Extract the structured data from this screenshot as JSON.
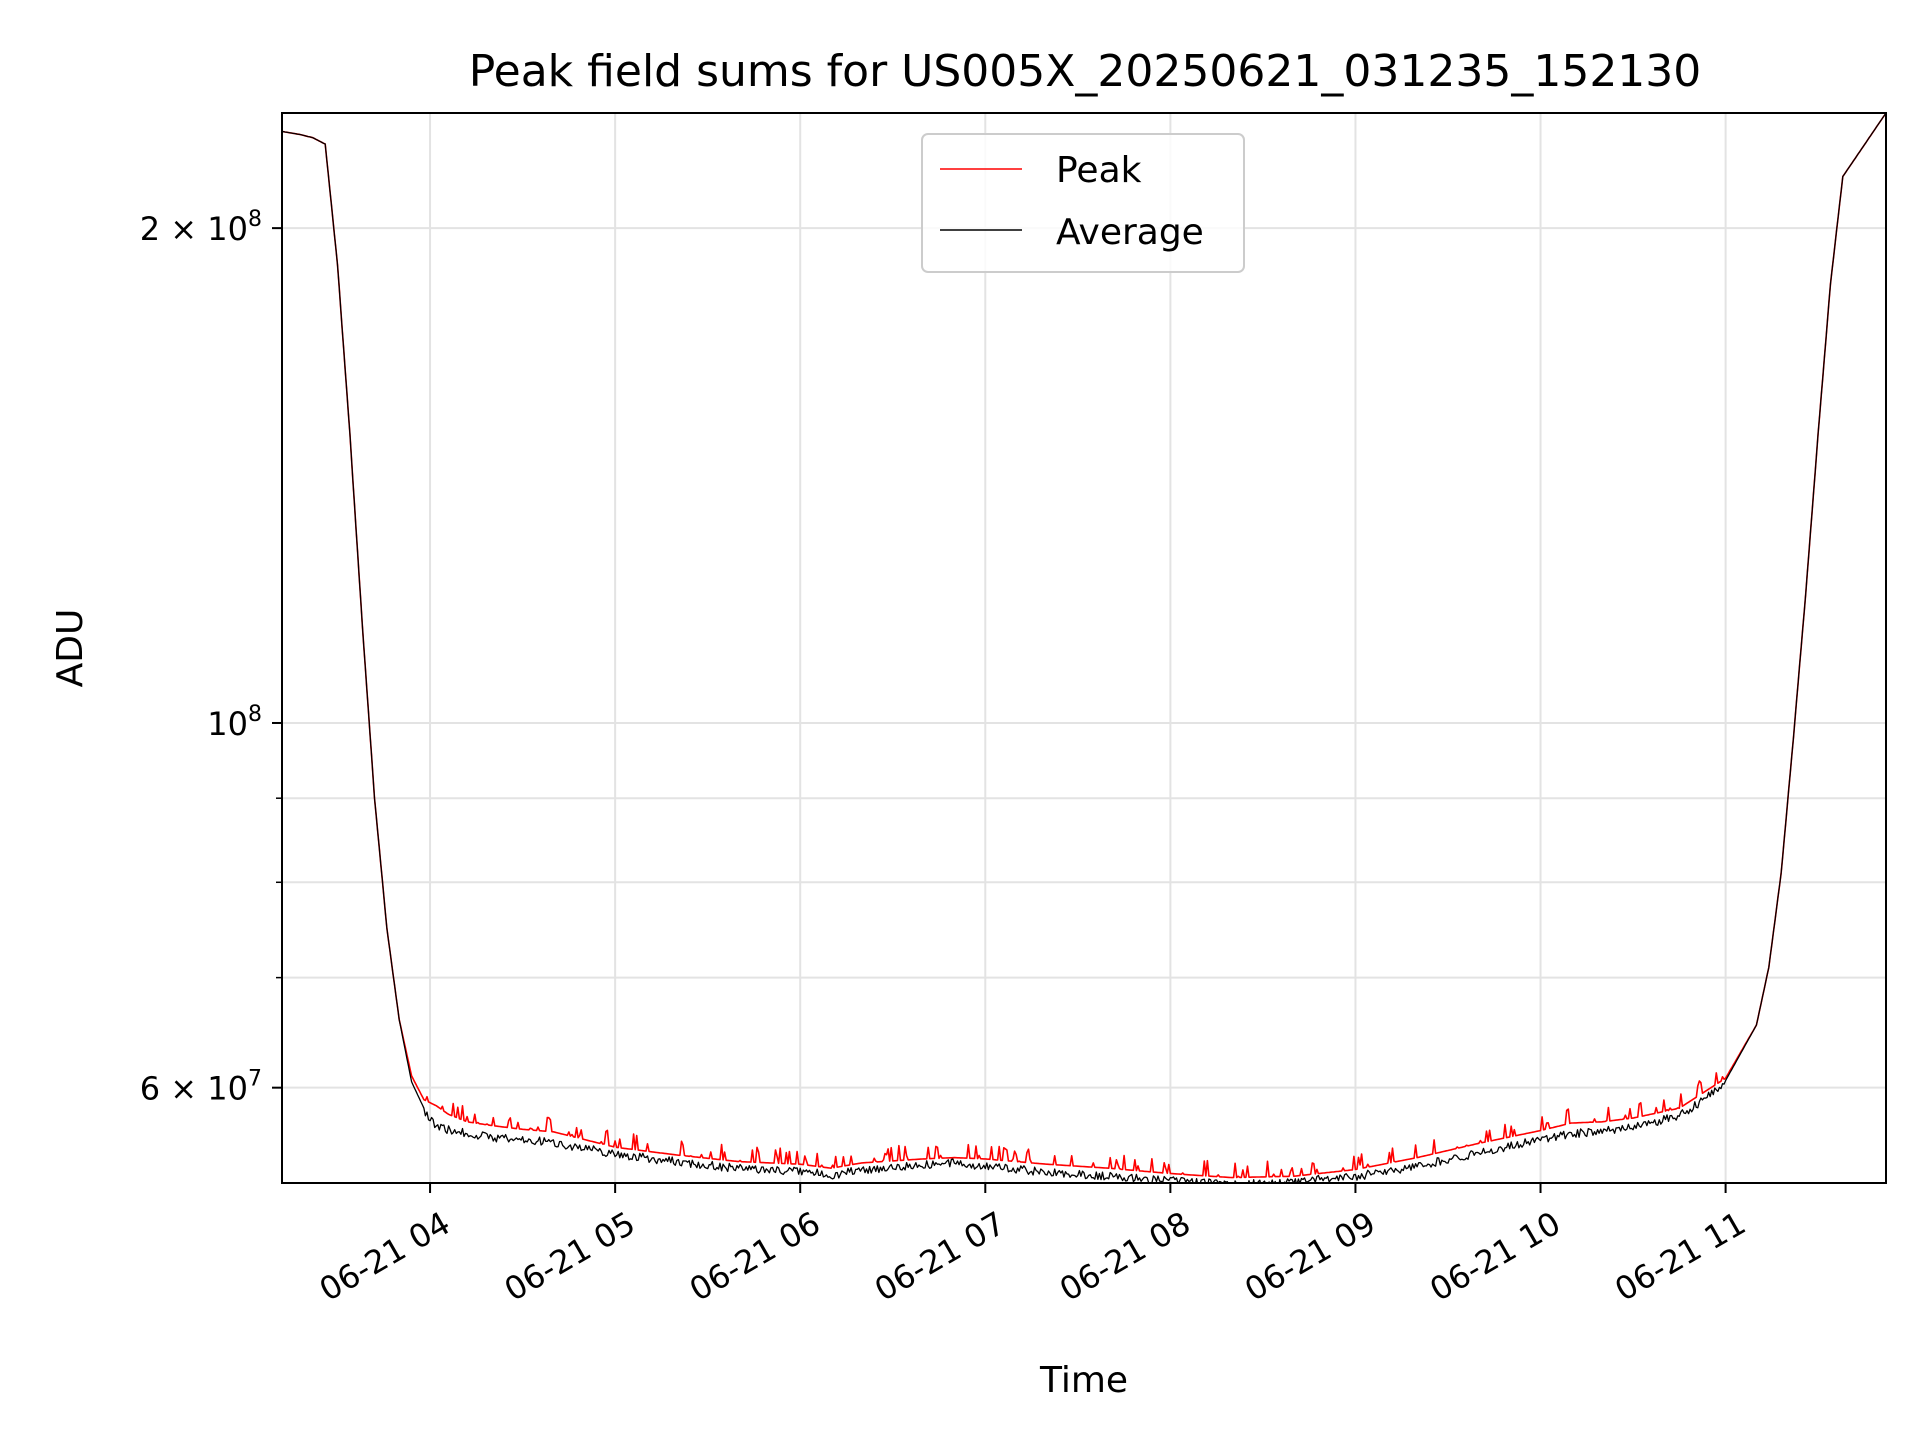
{
  "chart_data": {
    "type": "line",
    "title": "Peak field sums for US005X_20250621_031235_152130",
    "xlabel": "Time",
    "ylabel": "ADU",
    "yscale": "log",
    "ylim": [
      52500000,
      235000000
    ],
    "xlim": [
      "2025-06-21 03:12",
      "2025-06-21 11:52"
    ],
    "grid": true,
    "legend": "upper center",
    "x_ticks": [
      {
        "at": "2025-06-21 04:00",
        "label": "06-21 04"
      },
      {
        "at": "2025-06-21 05:00",
        "label": "06-21 05"
      },
      {
        "at": "2025-06-21 06:00",
        "label": "06-21 06"
      },
      {
        "at": "2025-06-21 07:00",
        "label": "06-21 07"
      },
      {
        "at": "2025-06-21 08:00",
        "label": "06-21 08"
      },
      {
        "at": "2025-06-21 09:00",
        "label": "06-21 09"
      },
      {
        "at": "2025-06-21 10:00",
        "label": "06-21 10"
      },
      {
        "at": "2025-06-21 11:00",
        "label": "06-21 11"
      }
    ],
    "y_ticks": [
      {
        "value": 60000000,
        "label": "6 × 10",
        "exp": "7"
      },
      {
        "value": 100000000,
        "label": "10",
        "exp": "8"
      },
      {
        "value": 200000000,
        "label": "2 × 10",
        "exp": "8"
      }
    ],
    "y_minor_ticks": [
      70000000,
      80000000,
      90000000
    ],
    "series": [
      {
        "name": "Peak",
        "color": "#ff0000",
        "noise": "positive",
        "x": [
          "2025-06-21 03:12",
          "2025-06-21 03:18",
          "2025-06-21 03:22",
          "2025-06-21 03:26",
          "2025-06-21 03:30",
          "2025-06-21 03:34",
          "2025-06-21 03:38",
          "2025-06-21 03:42",
          "2025-06-21 03:46",
          "2025-06-21 03:50",
          "2025-06-21 03:54",
          "2025-06-21 03:58",
          "2025-06-21 04:02",
          "2025-06-21 04:06",
          "2025-06-21 04:12",
          "2025-06-21 04:20",
          "2025-06-21 04:30",
          "2025-06-21 04:40",
          "2025-06-21 05:00",
          "2025-06-21 05:20",
          "2025-06-21 05:40",
          "2025-06-21 06:00",
          "2025-06-21 06:10",
          "2025-06-21 06:20",
          "2025-06-21 06:40",
          "2025-06-21 06:50",
          "2025-06-21 07:00",
          "2025-06-21 07:20",
          "2025-06-21 07:40",
          "2025-06-21 08:00",
          "2025-06-21 08:20",
          "2025-06-21 08:40",
          "2025-06-21 09:00",
          "2025-06-21 09:20",
          "2025-06-21 09:40",
          "2025-06-21 10:00",
          "2025-06-21 10:10",
          "2025-06-21 10:20",
          "2025-06-21 10:30",
          "2025-06-21 10:45",
          "2025-06-21 11:00",
          "2025-06-21 11:10",
          "2025-06-21 11:14",
          "2025-06-21 11:18",
          "2025-06-21 11:22",
          "2025-06-21 11:26",
          "2025-06-21 11:30",
          "2025-06-21 11:34",
          "2025-06-21 11:38",
          "2025-06-21 11:52"
        ],
        "values": [
          229000000,
          228000000,
          227000000,
          225000000,
          190000000,
          150000000,
          115000000,
          90000000,
          75000000,
          66000000,
          61000000,
          59000000,
          58500000,
          57800000,
          57200000,
          56900000,
          56600000,
          56400000,
          55200000,
          54600000,
          54100000,
          53900000,
          53600000,
          54000000,
          54300000,
          54400000,
          54300000,
          53900000,
          53600000,
          53200000,
          52900000,
          53000000,
          53500000,
          54400000,
          55500000,
          56500000,
          57100000,
          57200000,
          57500000,
          58300000,
          60800000,
          65500000,
          71000000,
          81000000,
          98000000,
          120000000,
          150000000,
          185000000,
          215000000,
          235000000
        ]
      },
      {
        "name": "Average",
        "color": "#000000",
        "noise": "negative",
        "x": [
          "2025-06-21 03:12",
          "2025-06-21 03:18",
          "2025-06-21 03:22",
          "2025-06-21 03:26",
          "2025-06-21 03:30",
          "2025-06-21 03:34",
          "2025-06-21 03:38",
          "2025-06-21 03:42",
          "2025-06-21 03:46",
          "2025-06-21 03:50",
          "2025-06-21 03:54",
          "2025-06-21 03:58",
          "2025-06-21 04:02",
          "2025-06-21 04:06",
          "2025-06-21 04:12",
          "2025-06-21 04:20",
          "2025-06-21 04:30",
          "2025-06-21 04:40",
          "2025-06-21 05:00",
          "2025-06-21 05:20",
          "2025-06-21 05:40",
          "2025-06-21 06:00",
          "2025-06-21 06:10",
          "2025-06-21 06:20",
          "2025-06-21 06:40",
          "2025-06-21 06:50",
          "2025-06-21 07:00",
          "2025-06-21 07:20",
          "2025-06-21 07:40",
          "2025-06-21 08:00",
          "2025-06-21 08:20",
          "2025-06-21 08:40",
          "2025-06-21 09:00",
          "2025-06-21 09:20",
          "2025-06-21 09:40",
          "2025-06-21 10:00",
          "2025-06-21 10:10",
          "2025-06-21 10:20",
          "2025-06-21 10:30",
          "2025-06-21 10:45",
          "2025-06-21 11:00",
          "2025-06-21 11:10",
          "2025-06-21 11:14",
          "2025-06-21 11:18",
          "2025-06-21 11:22",
          "2025-06-21 11:26",
          "2025-06-21 11:30",
          "2025-06-21 11:34",
          "2025-06-21 11:38",
          "2025-06-21 11:52"
        ],
        "values": [
          229000000,
          228000000,
          227000000,
          225000000,
          190000000,
          150000000,
          115000000,
          90000000,
          75000000,
          66000000,
          60500000,
          58300000,
          57300000,
          56900000,
          56600000,
          56300000,
          56100000,
          55900000,
          55000000,
          54400000,
          53900000,
          53700000,
          53400000,
          53800000,
          54200000,
          54300000,
          54100000,
          53600000,
          53300000,
          53000000,
          52700000,
          52900000,
          53300000,
          54100000,
          55100000,
          56100000,
          56600000,
          56800000,
          57100000,
          58000000,
          60600000,
          65500000,
          71000000,
          81000000,
          98000000,
          120000000,
          150000000,
          185000000,
          215000000,
          235000000
        ]
      }
    ]
  }
}
